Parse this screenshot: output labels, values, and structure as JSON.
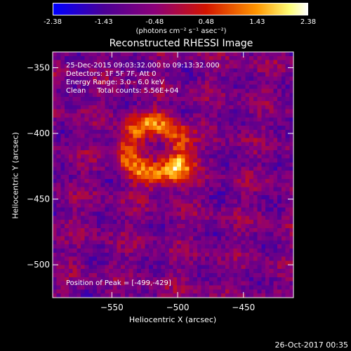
{
  "chart_data": {
    "type": "heatmap",
    "title": "Reconstructed RHESSI Image",
    "xlabel": "Heliocentric X (arcsec)",
    "ylabel": "Heliocentric Y (arcsec)",
    "xlim": [
      -595,
      -412
    ],
    "ylim": [
      -525,
      -338
    ],
    "x_ticks": [
      -550,
      -500,
      -450
    ],
    "y_ticks": [
      -350,
      -400,
      -450,
      -500
    ],
    "colorbar": {
      "ticks": [
        -2.38,
        -1.43,
        -0.48,
        0.48,
        1.43,
        2.38
      ],
      "tick_labels": [
        "-2.38",
        "-1.43",
        "-0.48",
        "0.48",
        "1.43",
        "2.38"
      ],
      "units": "(photons cm⁻² s⁻¹ asec⁻²)",
      "colors": [
        "#0000ff",
        "#4b0096",
        "#8c0078",
        "#d21400",
        "#ff9600",
        "#ffff78",
        "#ffffff"
      ]
    },
    "annotations": {
      "time_range": "25-Dec-2015 09:03:32.000 to 09:13:32.000",
      "detectors": "Detectors: 1F 5F 7F, Att 0",
      "energy_range": "Energy Range: 3.0 - 6.0 keV",
      "method": "Clean     Total counts: 5.56E+04",
      "peak": "Position of Peak = [-499,-429]"
    },
    "peak_position": [
      -499,
      -429
    ],
    "source_center": [
      -518,
      -412
    ],
    "source_inner_radius": 10,
    "source_outer_radius": 30
  },
  "footer": {
    "date": "26-Oct-2017 00:35"
  }
}
